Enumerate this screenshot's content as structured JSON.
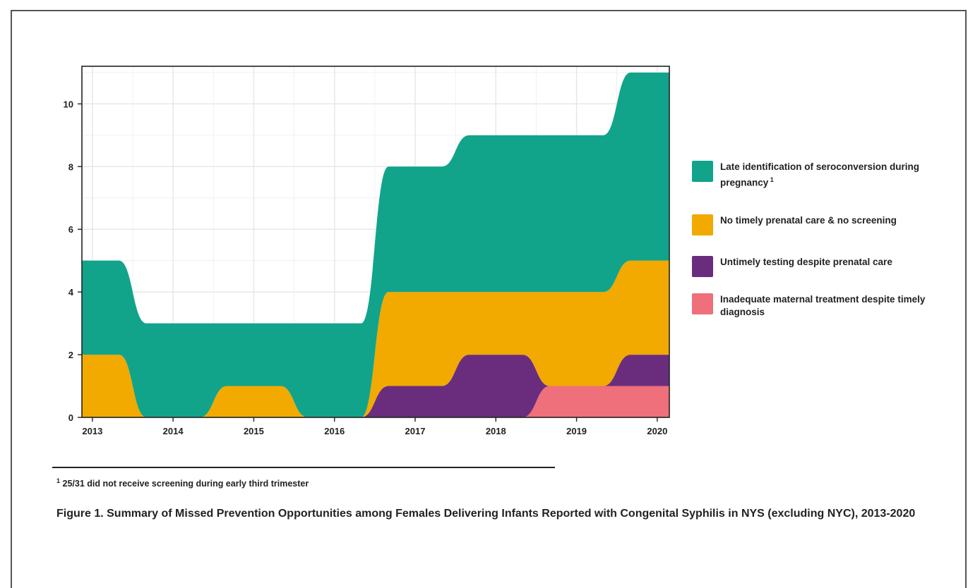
{
  "chart_data": {
    "type": "area",
    "stacked": true,
    "x": [
      2013,
      2014,
      2015,
      2016,
      2017,
      2018,
      2019,
      2020
    ],
    "series": [
      {
        "name": "Inadequate maternal treatment despite timely diagnosis",
        "color": "#ef6f7a",
        "values": [
          0,
          0,
          0,
          0,
          0,
          0,
          1,
          1
        ]
      },
      {
        "name": "Untimely testing despite prenatal care",
        "color": "#6a2d7e",
        "values": [
          0,
          0,
          0,
          0,
          1,
          2,
          0,
          1
        ]
      },
      {
        "name": "No timely prenatal care & no screening",
        "color": "#f2a900",
        "values": [
          2,
          0,
          1,
          0,
          3,
          2,
          3,
          3
        ]
      },
      {
        "name": "Late identification of seroconversion during pregnancy",
        "color": "#11a48b",
        "values": [
          3,
          3,
          2,
          3,
          4,
          5,
          5,
          6
        ]
      }
    ],
    "legend_order": [
      3,
      2,
      1,
      0
    ],
    "legend_marks": [
      "1",
      "",
      "",
      ""
    ],
    "ylim": [
      0,
      11.2
    ],
    "yticks": [
      0,
      2,
      4,
      6,
      8,
      10
    ],
    "xticks": [
      "2013",
      "2014",
      "2015",
      "2016",
      "2017",
      "2018",
      "2019",
      "2020"
    ],
    "grid": true,
    "legend_position": "right",
    "xlabel": "",
    "ylabel": ""
  },
  "footnote": {
    "mark": "1",
    "text": " 25/31 did not receive screening during early third trimester"
  },
  "caption": "Figure 1. Summary of Missed Prevention Opportunities among Females Delivering Infants Reported with Congenital Syphilis in NYS (excluding NYC), 2013-2020"
}
